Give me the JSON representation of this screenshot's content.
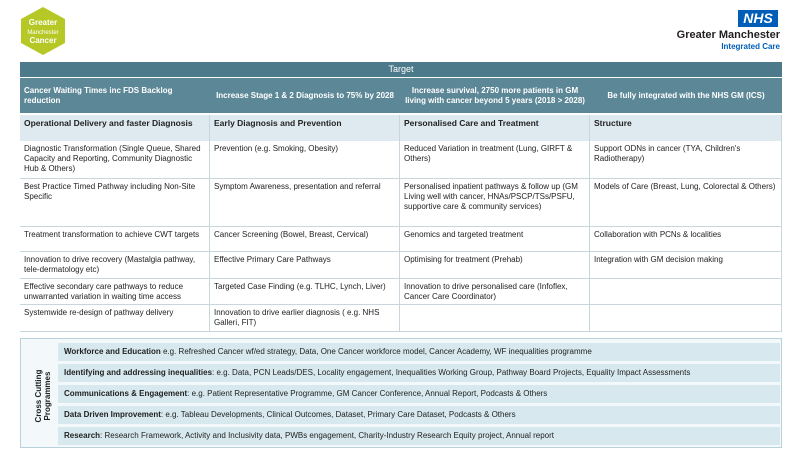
{
  "logo": {
    "lines": [
      "Greater",
      "Manchester",
      "Cancer"
    ]
  },
  "nhs": {
    "badge": "NHS",
    "name": "Greater Manchester",
    "sub": "Integrated Care"
  },
  "target": {
    "title": "Target",
    "items": [
      "Cancer Waiting Times inc FDS Backlog reduction",
      "Increase Stage 1 & 2 Diagnosis to 75% by 2028",
      "Increase survival, 2750 more patients in GM living with cancer beyond 5 years (2018 > 2028)",
      "Be fully integrated with the  NHS GM (ICS)"
    ]
  },
  "table": {
    "header": [
      "Operational Delivery and faster Diagnosis",
      "Early Diagnosis and Prevention",
      "Personalised Care and Treatment",
      "Structure"
    ],
    "rows": [
      [
        "Diagnostic Transformation (Single Queue, Shared Capacity and Reporting, Community Diagnostic Hub & Others)",
        "Prevention (e.g. Smoking, Obesity)",
        "Reduced Variation in treatment (Lung, GIRFT & Others)",
        "Support ODNs in cancer (TYA, Children's Radiotherapy)"
      ],
      [
        "Best Practice Timed Pathway including Non-Site Specific",
        "Symptom Awareness, presentation and referral",
        "Personalised inpatient pathways & follow up (GM Living well with cancer, HNAs/PSCP/TSs/PSFU, supportive care & community services)",
        "Models of Care (Breast, Lung, Colorectal & Others)"
      ],
      [
        "Treatment transformation to achieve CWT targets",
        "Cancer Screening (Bowel, Breast, Cervical)",
        "Genomics and targeted treatment",
        "Collaboration with PCNs & localities"
      ],
      [
        "Innovation to drive recovery (Mastalgia pathway, tele-dermatology etc)",
        "Effective Primary Care Pathways",
        "Optimising for treatment (Prehab)",
        "Integration with GM decision making"
      ],
      [
        "Effective secondary care pathways to reduce unwarranted variation in waiting time access",
        "Targeted Case Finding (e.g. TLHC, Lynch, Liver)",
        "Innovation to drive personalised care (Infoflex, Cancer Care Coordinator)"
      ],
      [
        "Systemwide re-design of pathway delivery",
        "Innovation to drive earlier diagnosis ( e.g. NHS Galleri, FIT)"
      ]
    ]
  },
  "cross_cutting": {
    "label": "Cross Cutting Programmes",
    "items": [
      {
        "title": "Workforce and Education",
        "text": " e.g. Refreshed Cancer wf/ed strategy, Data, One Cancer workforce model, Cancer Academy,  WF inequalities programme"
      },
      {
        "title": "Identifying and addressing inequalities",
        "text": ": e.g. Data, PCN Leads/DES, Locality engagement, Inequalities Working Group, Pathway Board Projects, Equality Impact Assessments"
      },
      {
        "title": "Communications & Engagement",
        "text": ": e.g. Patient Representative Programme, GM Cancer Conference, Annual Report, Podcasts & Others"
      },
      {
        "title": "Data Driven Improvement",
        "text": ": e.g. Tableau Developments, Clinical Outcomes, Dataset, Primary Care Dataset, Podcasts & Others"
      },
      {
        "title": "Research",
        "text": ": Research Framework, Activity and Inclusivity data, PWBs engagement, Charity-Industry Research Equity project, Annual report"
      }
    ]
  }
}
